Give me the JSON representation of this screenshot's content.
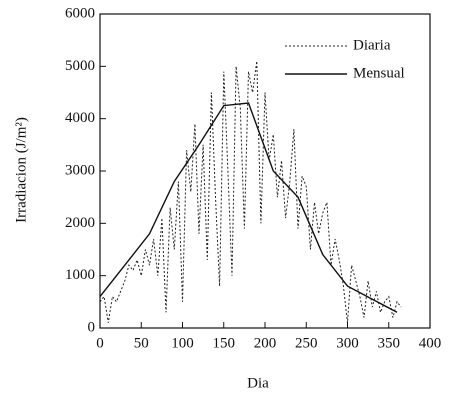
{
  "chart_data": {
    "type": "line",
    "xlabel": "Dia",
    "ylabel": "Irradiacion (J/m²)",
    "xlim": [
      0,
      400
    ],
    "xticks": [
      0,
      50,
      100,
      150,
      200,
      250,
      300,
      350,
      400
    ],
    "ylim": [
      0,
      6000
    ],
    "yticks": [
      0,
      1000,
      2000,
      3000,
      4000,
      5000,
      6000
    ],
    "legend": "upper right",
    "series": [
      {
        "name": "Diaria",
        "color": "#222222",
        "dash": true,
        "x": [
          0,
          5,
          10,
          15,
          20,
          25,
          30,
          35,
          40,
          45,
          50,
          55,
          60,
          65,
          70,
          75,
          80,
          85,
          90,
          95,
          100,
          105,
          110,
          115,
          120,
          125,
          130,
          135,
          140,
          145,
          150,
          155,
          160,
          165,
          170,
          175,
          180,
          185,
          190,
          195,
          200,
          205,
          210,
          215,
          220,
          225,
          230,
          235,
          240,
          245,
          250,
          255,
          260,
          265,
          270,
          275,
          280,
          285,
          290,
          295,
          300,
          305,
          310,
          315,
          320,
          325,
          330,
          335,
          340,
          345,
          350,
          355,
          360,
          365
        ],
        "values": [
          500,
          600,
          100,
          600,
          500,
          700,
          900,
          1200,
          1100,
          1300,
          1000,
          1500,
          1200,
          1700,
          1000,
          2100,
          300,
          2300,
          1500,
          2800,
          500,
          3400,
          2600,
          3900,
          1800,
          3500,
          1300,
          4500,
          2500,
          800,
          4900,
          3000,
          1000,
          5000,
          4200,
          1900,
          4900,
          4500,
          5100,
          2000,
          4500,
          3200,
          3700,
          2500,
          3200,
          2100,
          2800,
          3800,
          1900,
          2900,
          2700,
          1500,
          2400,
          1800,
          2200,
          2400,
          1200,
          1700,
          1300,
          800,
          100,
          1200,
          900,
          600,
          200,
          900,
          400,
          700,
          300,
          500,
          600,
          200,
          500,
          400
        ]
      },
      {
        "name": "Mensual",
        "color": "#111111",
        "dash": false,
        "x": [
          0,
          30,
          60,
          90,
          120,
          150,
          180,
          210,
          240,
          270,
          300,
          330,
          360
        ],
        "values": [
          600,
          1200,
          1800,
          2800,
          3500,
          4250,
          4300,
          3000,
          2500,
          1400,
          800,
          550,
          300
        ]
      }
    ]
  }
}
